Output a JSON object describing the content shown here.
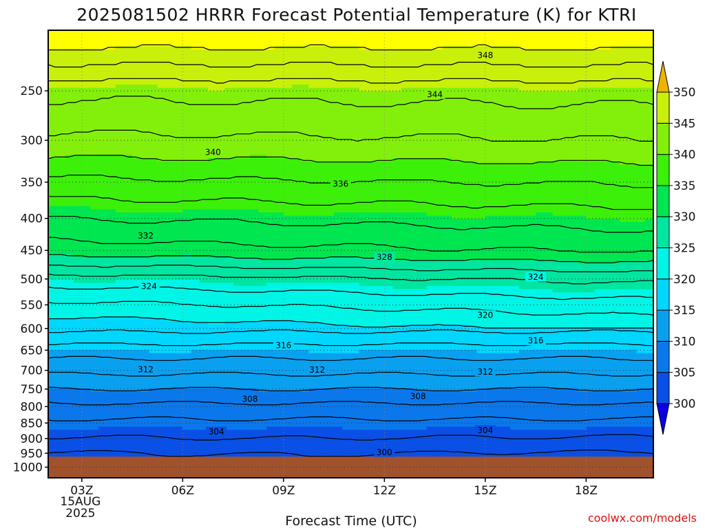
{
  "title": "2025081502 HRRR Forecast Potential Temperature (K) for KTRI",
  "credit": "coolwx.com/models",
  "chart_data": {
    "type": "contour",
    "title": "2025081502 HRRR Forecast Potential Temperature (K) for KTRI",
    "xlabel": "Forecast Time (UTC)",
    "ylabel": "",
    "x_ticks": [
      {
        "hour": 3,
        "label": "03Z",
        "sub": [
          "15AUG",
          "2025"
        ]
      },
      {
        "hour": 6,
        "label": "06Z",
        "sub": []
      },
      {
        "hour": 9,
        "label": "09Z",
        "sub": []
      },
      {
        "hour": 12,
        "label": "12Z",
        "sub": []
      },
      {
        "hour": 15,
        "label": "15Z",
        "sub": []
      },
      {
        "hour": 18,
        "label": "18Z",
        "sub": []
      }
    ],
    "xlim": [
      2,
      20
    ],
    "y_ticks": [
      250,
      300,
      350,
      400,
      450,
      500,
      550,
      600,
      650,
      700,
      750,
      800,
      850,
      900,
      950,
      1000
    ],
    "ylim": [
      1040,
      200
    ],
    "y_scale": "log-pressure",
    "grid": true,
    "levels_k": [
      300,
      305,
      310,
      315,
      320,
      325,
      330,
      335,
      340,
      345,
      350
    ],
    "colorbar": {
      "labels": [
        "300",
        "305",
        "310",
        "315",
        "320",
        "325",
        "330",
        "335",
        "340",
        "345",
        "350"
      ],
      "colors": [
        "#0a00e6",
        "#0a50e6",
        "#0a78eb",
        "#0aa0f0",
        "#00d7ff",
        "#00f5e6",
        "#00e6a0",
        "#00e650",
        "#3cf00a",
        "#82f00a",
        "#c8f00a",
        "#ffff00",
        "#f0b400"
      ]
    },
    "contour_interval_k": 2,
    "contour_labels": [
      {
        "value": "348",
        "hour": 15,
        "pressure": 219
      },
      {
        "value": "344",
        "hour": 13.5,
        "pressure": 253
      },
      {
        "value": "340",
        "hour": 6.9,
        "pressure": 313
      },
      {
        "value": "336",
        "hour": 10.7,
        "pressure": 352
      },
      {
        "value": "332",
        "hour": 4.9,
        "pressure": 426
      },
      {
        "value": "328",
        "hour": 12,
        "pressure": 461
      },
      {
        "value": "324",
        "hour": 5.0,
        "pressure": 513
      },
      {
        "value": "324",
        "hour": 16.5,
        "pressure": 496
      },
      {
        "value": "320",
        "hour": 15,
        "pressure": 571
      },
      {
        "value": "316",
        "hour": 9.0,
        "pressure": 638
      },
      {
        "value": "316",
        "hour": 16.5,
        "pressure": 627
      },
      {
        "value": "312",
        "hour": 4.9,
        "pressure": 697
      },
      {
        "value": "312",
        "hour": 10.0,
        "pressure": 698
      },
      {
        "value": "312",
        "hour": 15,
        "pressure": 703
      },
      {
        "value": "308",
        "hour": 8.0,
        "pressure": 777
      },
      {
        "value": "308",
        "hour": 13.0,
        "pressure": 769
      },
      {
        "value": "304",
        "hour": 7.0,
        "pressure": 877
      },
      {
        "value": "304",
        "hour": 15,
        "pressure": 872
      },
      {
        "value": "300",
        "hour": 12,
        "pressure": 946
      }
    ],
    "terrain": {
      "label": "ground",
      "surface_pressure": 962,
      "color": "#a0522d"
    }
  }
}
